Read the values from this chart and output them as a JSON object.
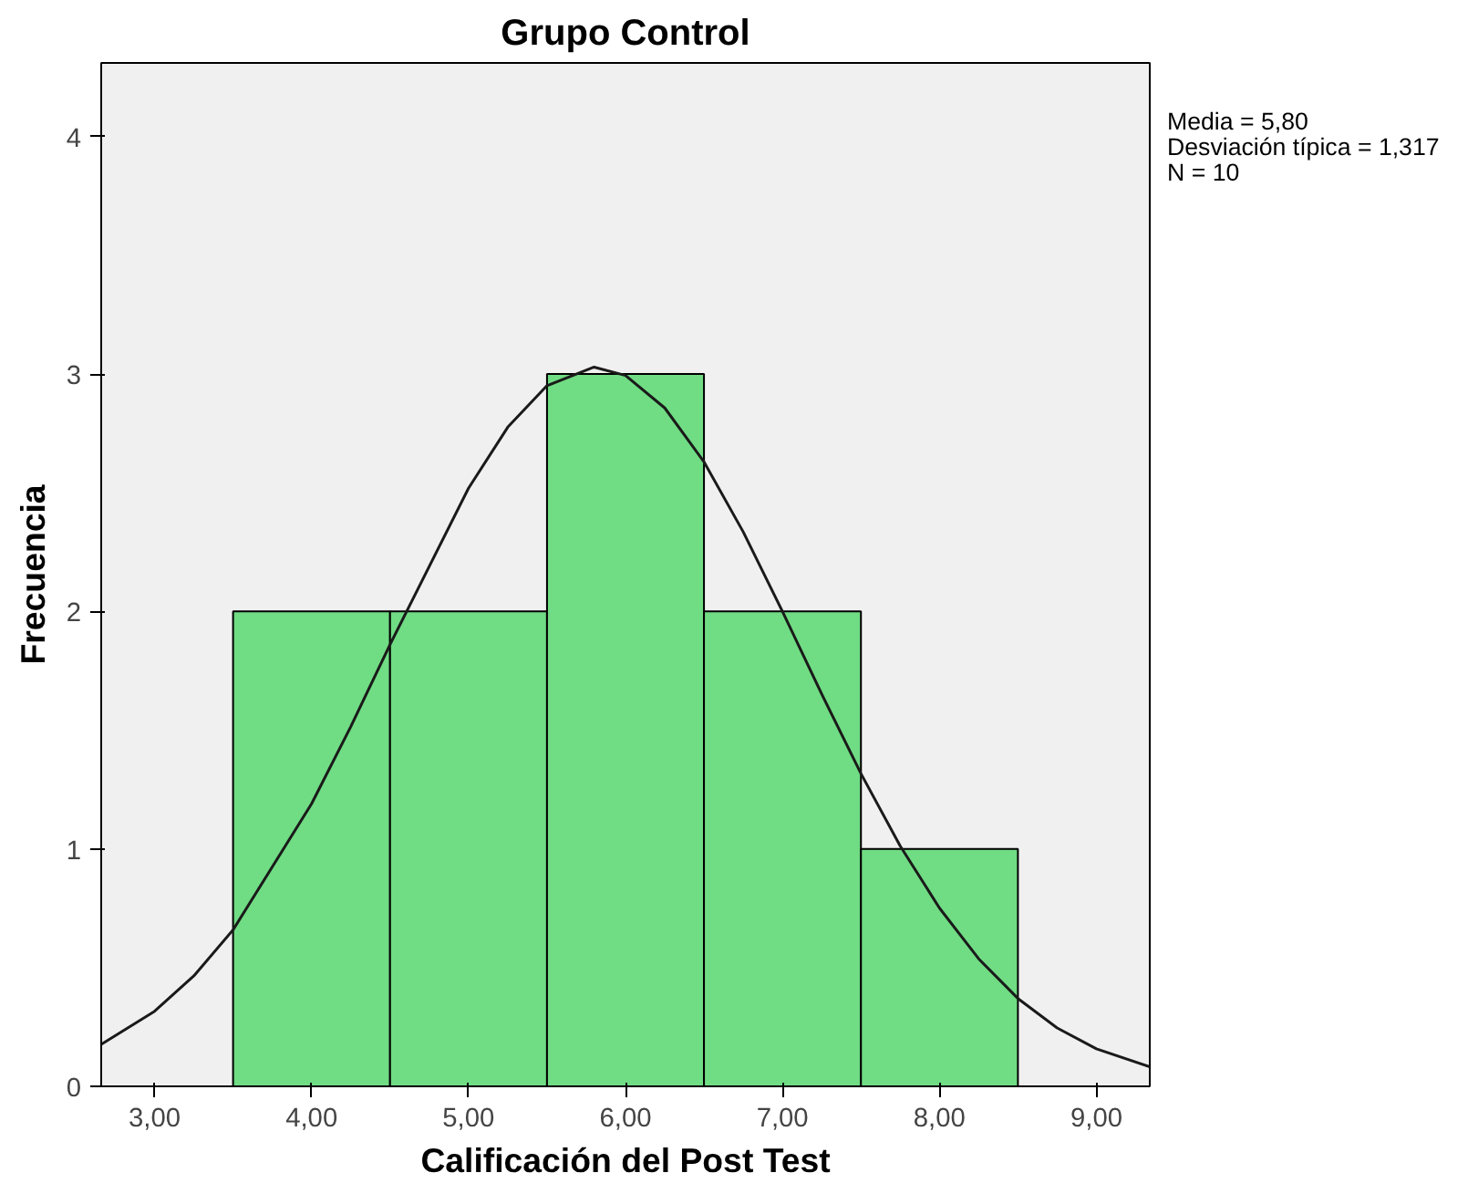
{
  "chart_data": {
    "type": "histogram",
    "title": "Grupo Control",
    "xlabel": "Calificación del Post Test",
    "ylabel": "Frecuencia",
    "bins": [
      3.5,
      4.5,
      5.5,
      6.5,
      7.5,
      8.5
    ],
    "values": [
      2,
      2,
      3,
      2,
      1
    ],
    "color": "#70dc84",
    "series": [
      {
        "type": "line",
        "color": "#1a1a1a",
        "x": [
          2.66,
          3.0,
          3.25,
          3.5,
          4.0,
          4.25,
          4.5,
          5.0,
          5.25,
          5.5,
          5.8,
          6.0,
          6.25,
          6.5,
          6.75,
          7.0,
          7.25,
          7.5,
          7.75,
          8.0,
          8.25,
          8.5,
          8.75,
          9.0,
          9.34
        ],
        "values": [
          0.177,
          0.316,
          0.465,
          0.659,
          1.19,
          1.515,
          1.861,
          2.519,
          2.776,
          2.951,
          3.029,
          2.994,
          2.857,
          2.63,
          2.335,
          2.0,
          1.652,
          1.317,
          1.012,
          0.751,
          0.537,
          0.37,
          0.246,
          0.158,
          0.082
        ]
      }
    ],
    "xlim": [
      2.66,
      9.34
    ],
    "ylim": [
      0,
      4.31
    ],
    "xticks": [
      {
        "value": 3,
        "label": "3,00"
      },
      {
        "value": 4,
        "label": "4,00"
      },
      {
        "value": 5,
        "label": "5,00"
      },
      {
        "value": 6,
        "label": "6,00"
      },
      {
        "value": 7,
        "label": "7,00"
      },
      {
        "value": 8,
        "label": "8,00"
      },
      {
        "value": 9,
        "label": "9,00"
      }
    ],
    "yticks": [
      0,
      1,
      2,
      3,
      4
    ],
    "grid": false,
    "annotations": [
      "Media = 5,80\nDesviación típica = 1,317\nN = 10"
    ]
  }
}
